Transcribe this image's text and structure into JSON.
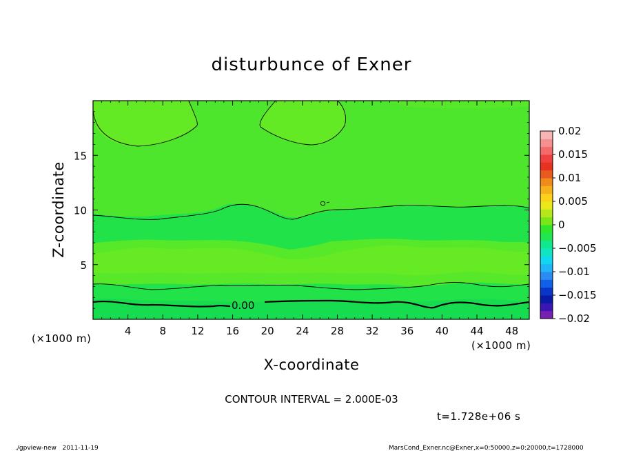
{
  "chart_data": {
    "type": "heatmap",
    "title": "disturbunce of Exner",
    "xlabel": "X-coordinate",
    "ylabel": "Z-coordinate",
    "x_unit": "(×1000 m)",
    "z_unit": "(×1000 m)",
    "xlim": [
      0,
      50
    ],
    "ylim": [
      0,
      20
    ],
    "x_ticks": [
      4,
      8,
      12,
      16,
      20,
      24,
      28,
      32,
      36,
      40,
      44,
      48
    ],
    "y_ticks": [
      5,
      10,
      15
    ],
    "colorbar": {
      "levels": [
        -0.02,
        -0.015,
        -0.01,
        -0.005,
        0,
        0.005,
        0.01,
        0.015,
        0.02
      ],
      "labels": [
        "0.02",
        "0.015",
        "0.01",
        "0.005",
        "0",
        "−0.005",
        "−0.01",
        "−0.015",
        "−0.02"
      ],
      "colors_bottom_to_top": [
        "#7a1fb4",
        "#3a16b4",
        "#0a1aa8",
        "#0a36c8",
        "#1060e8",
        "#2a8cf2",
        "#20b4f8",
        "#10d8f0",
        "#10e4c0",
        "#10e890",
        "#20e650",
        "#30e62a",
        "#7ae61a",
        "#b4e818",
        "#e8e81a",
        "#fbd21a",
        "#f6b01a",
        "#f08a1a",
        "#ea5a1e",
        "#e6321e",
        "#f04040",
        "#f46a6a",
        "#f49090",
        "#f6b4b4"
      ]
    },
    "contour_interval_text": "CONTOUR INTERVAL = 2.000E-03",
    "contour_label": "0.00",
    "time_text": "t=1.728e+06 s",
    "field_summary": "Exner disturbance between 0 and about 0.005 across the domain; green bands near z=1.5 and z=8-10 km, yellow-green band near z=3-7 km and z>10 km",
    "footer_left": "./gpview-new   2011-11-19",
    "footer_right": "MarsCond_Exner.nc@Exner,x=0:50000,z=0:20000,t=1728000"
  }
}
